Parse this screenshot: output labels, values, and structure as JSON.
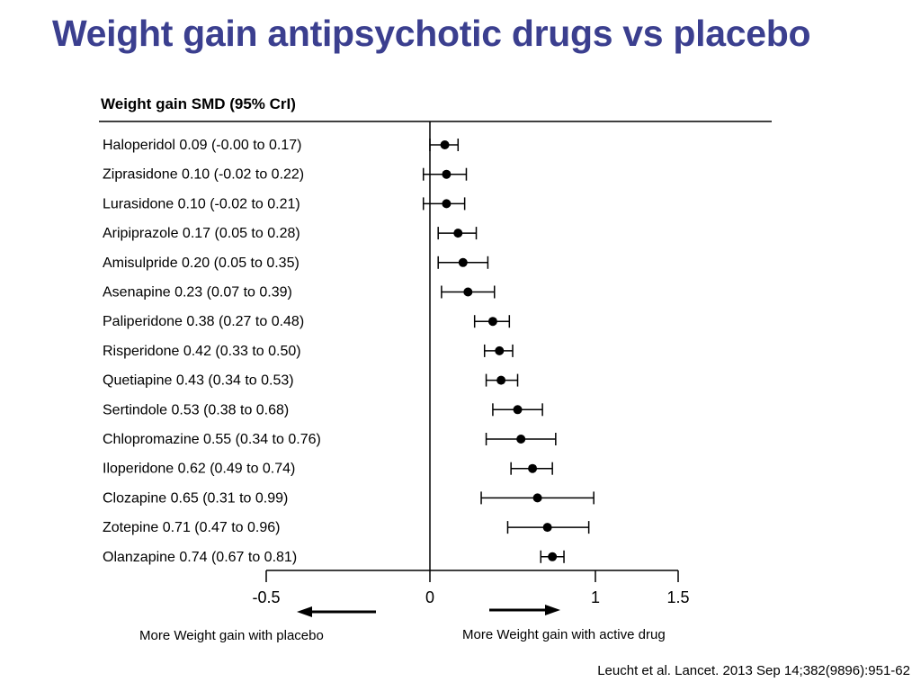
{
  "slide": {
    "title": "Weight gain antipsychotic drugs vs placebo",
    "title_color": "#3b3f8f"
  },
  "chart_data": {
    "type": "forest",
    "header": "Weight gain SMD (95% CrI)",
    "xlim": [
      -0.5,
      1.5
    ],
    "x_ticks": [
      -0.5,
      0,
      1,
      1.5
    ],
    "x_tick_labels": [
      "-0.5",
      "0",
      "1",
      "1.5"
    ],
    "rows": [
      {
        "label": "Haloperidol 0.09 (-0.00 to 0.17)",
        "drug": "Haloperidol",
        "smd": 0.09,
        "lo": -0.0,
        "hi": 0.17
      },
      {
        "label": "Ziprasidone 0.10 (-0.02 to 0.22)",
        "drug": "Ziprasidone",
        "smd": 0.1,
        "lo": -0.02,
        "hi": 0.22
      },
      {
        "label": "Lurasidone 0.10 (-0.02 to 0.21)",
        "drug": "Lurasidone",
        "smd": 0.1,
        "lo": -0.02,
        "hi": 0.21
      },
      {
        "label": "Aripiprazole 0.17 (0.05 to 0.28)",
        "drug": "Aripiprazole",
        "smd": 0.17,
        "lo": 0.05,
        "hi": 0.28
      },
      {
        "label": "Amisulpride 0.20 (0.05 to 0.35)",
        "drug": "Amisulpride",
        "smd": 0.2,
        "lo": 0.05,
        "hi": 0.35
      },
      {
        "label": "Asenapine 0.23 (0.07 to 0.39)",
        "drug": "Asenapine",
        "smd": 0.23,
        "lo": 0.07,
        "hi": 0.39
      },
      {
        "label": "Paliperidone 0.38 (0.27 to 0.48)",
        "drug": "Paliperidone",
        "smd": 0.38,
        "lo": 0.27,
        "hi": 0.48
      },
      {
        "label": "Risperidone 0.42 (0.33 to 0.50)",
        "drug": "Risperidone",
        "smd": 0.42,
        "lo": 0.33,
        "hi": 0.5
      },
      {
        "label": "Quetiapine 0.43 (0.34 to 0.53)",
        "drug": "Quetiapine",
        "smd": 0.43,
        "lo": 0.34,
        "hi": 0.53
      },
      {
        "label": "Sertindole 0.53 (0.38 to 0.68)",
        "drug": "Sertindole",
        "smd": 0.53,
        "lo": 0.38,
        "hi": 0.68
      },
      {
        "label": "Chlopromazine 0.55 (0.34 to 0.76)",
        "drug": "Chlopromazine",
        "smd": 0.55,
        "lo": 0.34,
        "hi": 0.76
      },
      {
        "label": "Iloperidone 0.62 (0.49 to 0.74)",
        "drug": "Iloperidone",
        "smd": 0.62,
        "lo": 0.49,
        "hi": 0.74
      },
      {
        "label": "Clozapine 0.65 (0.31 to 0.99)",
        "drug": "Clozapine",
        "smd": 0.65,
        "lo": 0.31,
        "hi": 0.99
      },
      {
        "label": "Zotepine 0.71 (0.47 to 0.96)",
        "drug": "Zotepine",
        "smd": 0.71,
        "lo": 0.47,
        "hi": 0.96
      },
      {
        "label": "Olanzapine 0.74 (0.67 to 0.81)",
        "drug": "Olanzapine",
        "smd": 0.74,
        "lo": 0.67,
        "hi": 0.81
      }
    ],
    "direction_left": "More Weight gain with placebo",
    "direction_right": "More Weight gain with active drug",
    "grid": false,
    "legend": false
  },
  "citation": "Leucht et al. Lancet. 2013 Sep 14;382(9896):951-62"
}
